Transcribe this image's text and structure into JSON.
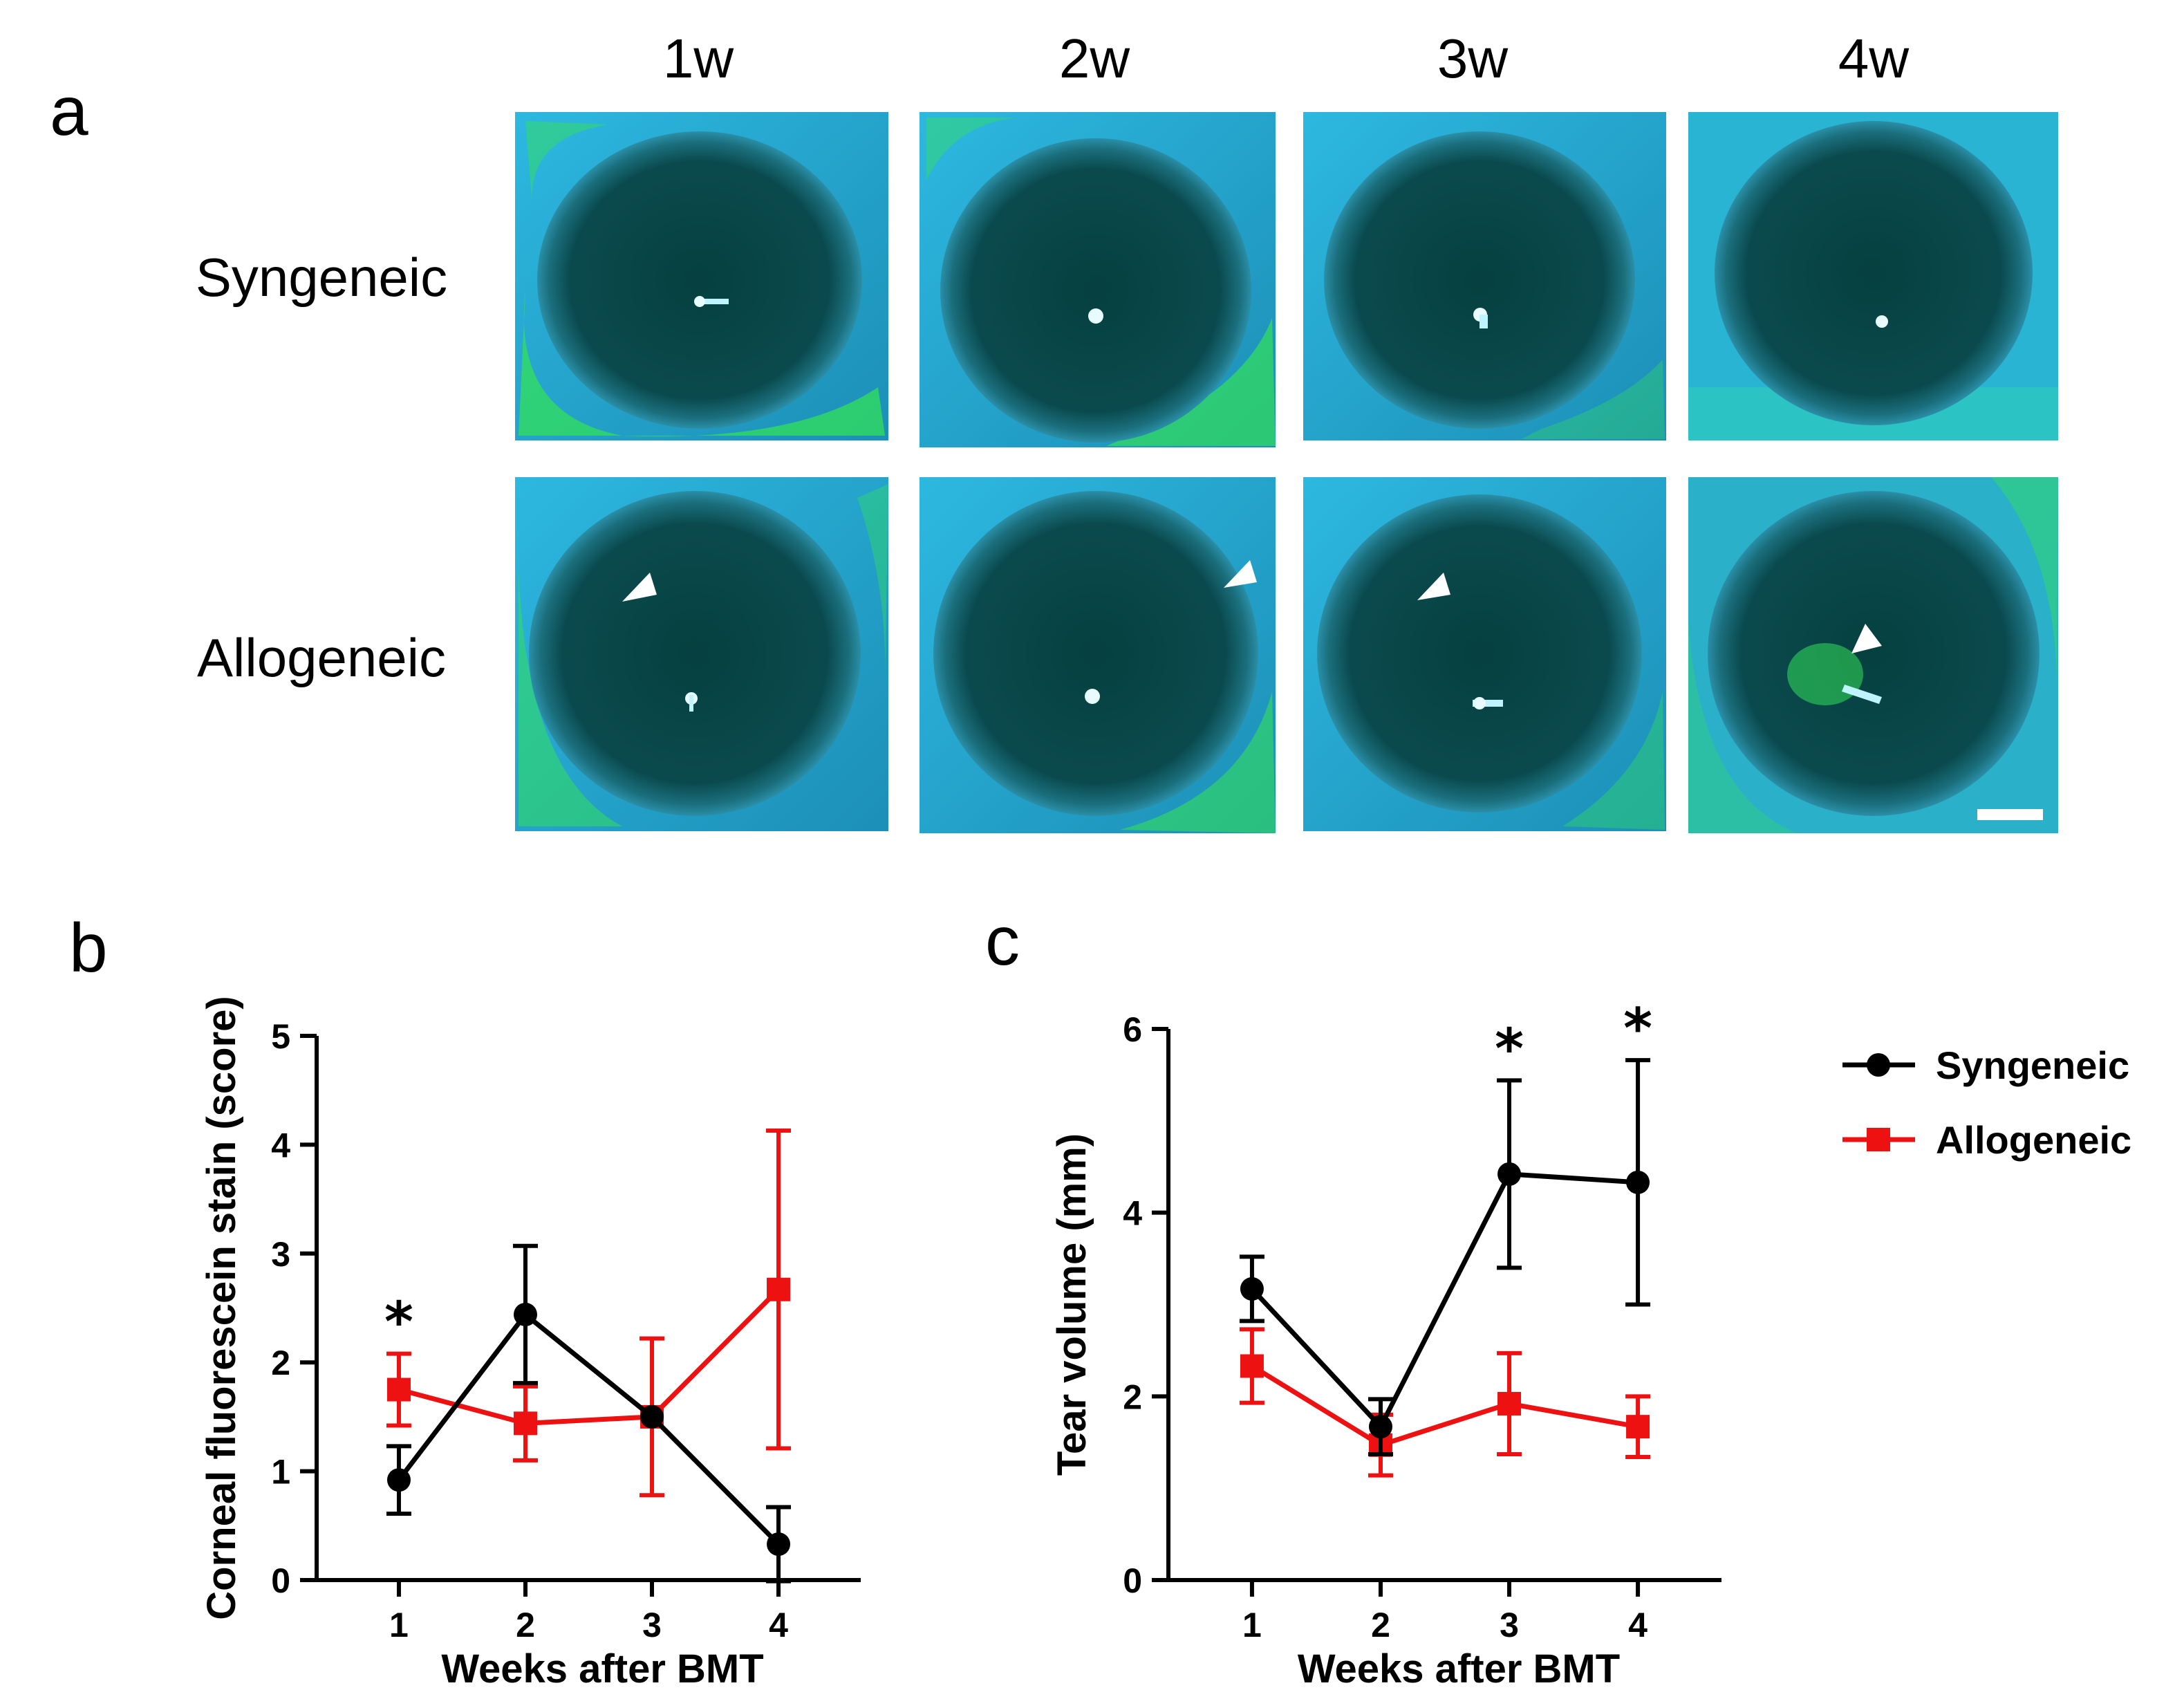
{
  "figure": {
    "panel_a_label": "a",
    "panel_b_label": "b",
    "panel_c_label": "c",
    "columns": [
      "1w",
      "2w",
      "3w",
      "4w"
    ],
    "rows": [
      "Syngeneic",
      "Allogeneic"
    ]
  },
  "colors": {
    "syngeneic": "#000000",
    "allogeneic": "#ee1111",
    "photo_bg": "#1f9fc9",
    "photo_dark": "#053a3e",
    "stain": "#33e05a"
  },
  "chart_data": [
    {
      "type": "line",
      "panel": "b",
      "title": "",
      "xlabel": "Weeks after BMT",
      "ylabel": "Corneal fluorescein stain (score)",
      "x": [
        1,
        2,
        3,
        4
      ],
      "x_tick_labels": [
        "1",
        "2",
        "3",
        "4"
      ],
      "xlim": [
        0.35,
        4.65
      ],
      "ylim": [
        0,
        5
      ],
      "y_ticks": [
        0,
        1,
        2,
        3,
        4,
        5
      ],
      "y_tick_labels": [
        "0",
        "1",
        "2",
        "3",
        "4",
        "5"
      ],
      "series": [
        {
          "name": "Syngeneic",
          "marker": "circle",
          "values": [
            0.92,
            2.44,
            1.5,
            0.33
          ],
          "err": [
            0.31,
            0.63,
            0.0,
            0.34
          ]
        },
        {
          "name": "Allogeneic",
          "marker": "square",
          "values": [
            1.75,
            1.44,
            1.5,
            2.67
          ],
          "err": [
            0.33,
            0.34,
            0.72,
            1.46
          ]
        }
      ],
      "annotations": [
        {
          "x": 1,
          "text": "*"
        }
      ]
    },
    {
      "type": "line",
      "panel": "c",
      "title": "",
      "xlabel": "Weeks after BMT",
      "ylabel": "Tear volume (mm)",
      "x": [
        1,
        2,
        3,
        4
      ],
      "x_tick_labels": [
        "1",
        "2",
        "3",
        "4"
      ],
      "xlim": [
        0.35,
        4.65
      ],
      "ylim": [
        0,
        6
      ],
      "y_ticks": [
        0,
        2,
        4,
        6
      ],
      "y_tick_labels": [
        "0",
        "2",
        "4",
        "6"
      ],
      "series": [
        {
          "name": "Syngeneic",
          "marker": "circle",
          "values": [
            3.17,
            1.67,
            4.42,
            4.33
          ],
          "err": [
            0.35,
            0.3,
            1.02,
            1.33
          ]
        },
        {
          "name": "Allogeneic",
          "marker": "square",
          "values": [
            2.33,
            1.47,
            1.92,
            1.67
          ],
          "err": [
            0.4,
            0.33,
            0.55,
            0.33
          ]
        }
      ],
      "annotations": [
        {
          "x": 3,
          "text": "*"
        },
        {
          "x": 4,
          "text": "*"
        }
      ]
    }
  ],
  "legend": {
    "placement": "right",
    "entries": [
      "Syngeneic",
      "Allogeneic"
    ]
  }
}
